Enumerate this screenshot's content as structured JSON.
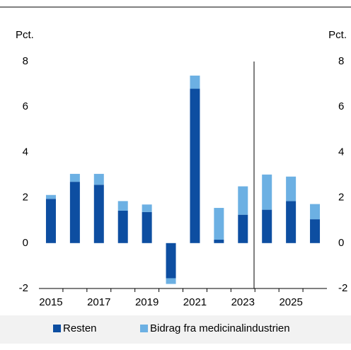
{
  "chart_data": {
    "type": "stacked_bar",
    "y_label_left": "Pct.",
    "y_label_right": "Pct.",
    "categories": [
      "2015",
      null,
      "2017",
      null,
      "2019",
      null,
      "2021",
      null,
      "2023",
      null,
      "2025",
      null
    ],
    "series": [
      {
        "name": "Resten",
        "color": "#0d4ea1",
        "values": [
          1.95,
          2.7,
          2.57,
          1.43,
          1.37,
          -1.55,
          6.8,
          0.15,
          1.25,
          1.47,
          1.85,
          1.05
        ]
      },
      {
        "name": "Bidrag fra medicinalindustrien",
        "color": "#6cb0e3",
        "values": [
          0.17,
          0.35,
          0.48,
          0.42,
          0.33,
          -0.25,
          0.58,
          1.4,
          1.25,
          1.55,
          1.08,
          0.67
        ]
      }
    ],
    "ylim": [
      -2,
      8
    ],
    "yticks": [
      -2,
      0,
      2,
      4,
      6,
      8
    ],
    "y2lim": [
      -2,
      8
    ],
    "y2ticks": [
      -2,
      0,
      2,
      4,
      6,
      8
    ]
  }
}
